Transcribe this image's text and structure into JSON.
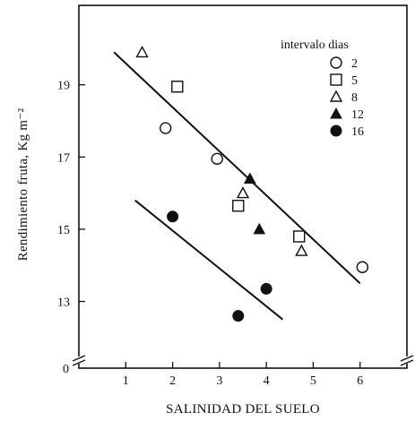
{
  "chart_data": {
    "type": "scatter",
    "title": "",
    "xlabel": "SALINIDAD DEL SUELO",
    "ylabel": "Rendimiento fruta, Kg m⁻²",
    "xlim": [
      0,
      7
    ],
    "ylim": [
      11.5,
      21.2
    ],
    "x_ticks": [
      1,
      2,
      3,
      4,
      5,
      6
    ],
    "y_ticks": [
      13,
      15,
      17,
      19
    ],
    "y_axis_break": true,
    "y_origin_label": "0",
    "legend": {
      "title": "intervalo dias",
      "placement": "top-right",
      "entries": [
        {
          "label": "2",
          "marker": "open-circle"
        },
        {
          "label": "5",
          "marker": "open-square"
        },
        {
          "label": "8",
          "marker": "open-triangle"
        },
        {
          "label": "12",
          "marker": "filled-triangle"
        },
        {
          "label": "16",
          "marker": "filled-circle"
        }
      ]
    },
    "series": [
      {
        "name": "2",
        "marker": "open-circle",
        "points": [
          [
            1.85,
            17.8
          ],
          [
            2.95,
            16.95
          ],
          [
            6.05,
            13.95
          ]
        ]
      },
      {
        "name": "5",
        "marker": "open-square",
        "points": [
          [
            2.1,
            18.95
          ],
          [
            3.4,
            15.65
          ],
          [
            4.7,
            14.8
          ]
        ]
      },
      {
        "name": "8",
        "marker": "open-triangle",
        "points": [
          [
            1.35,
            19.9
          ],
          [
            3.5,
            16.0
          ],
          [
            4.75,
            14.4
          ]
        ]
      },
      {
        "name": "12",
        "marker": "filled-triangle",
        "points": [
          [
            3.65,
            16.4
          ],
          [
            3.85,
            15.0
          ]
        ]
      },
      {
        "name": "16",
        "marker": "filled-circle",
        "points": [
          [
            2.0,
            15.35
          ],
          [
            3.4,
            12.6
          ],
          [
            4.0,
            13.35
          ]
        ]
      }
    ],
    "fit_lines": [
      {
        "x": [
          0.75,
          6.0
        ],
        "y": [
          19.9,
          13.5
        ]
      },
      {
        "x": [
          1.2,
          4.35
        ],
        "y": [
          15.8,
          12.5
        ]
      }
    ],
    "colors": {
      "ink": "#111111",
      "background": "#ffffff"
    }
  }
}
